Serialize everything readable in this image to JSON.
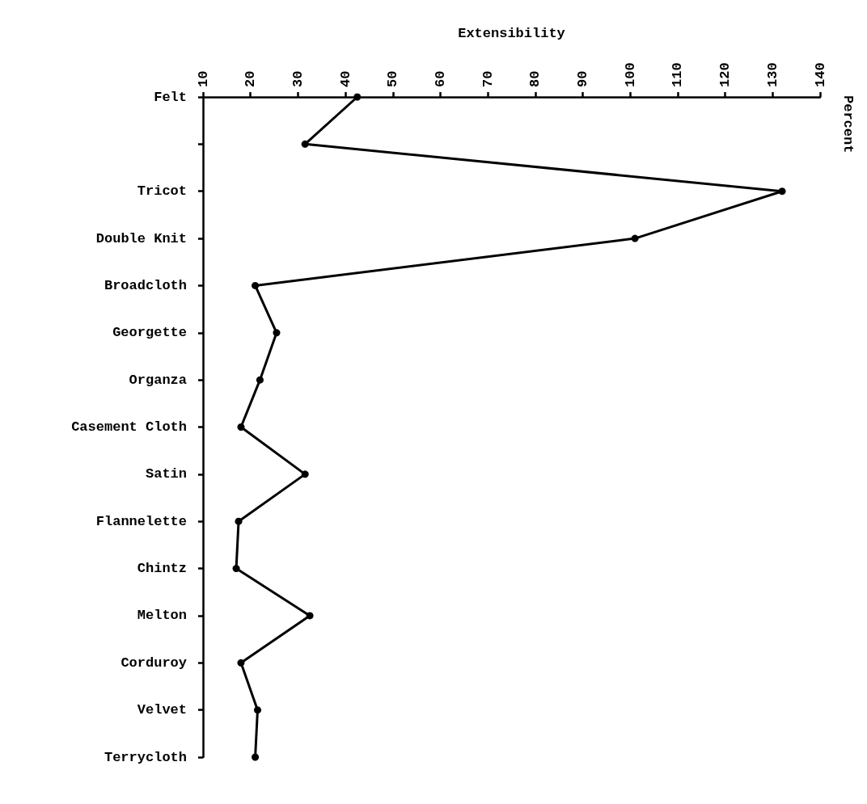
{
  "chart_data": {
    "type": "line",
    "orientation": "horizontal",
    "xlabel": "Extensibility",
    "annotations": [
      "Percent"
    ],
    "categories": [
      "Felt",
      null,
      "Tricot",
      "Double Knit",
      "Broadcloth",
      "Georgette",
      "Organza",
      "Casement Cloth",
      "Satin",
      "Flannelette",
      "Chintz",
      "Melton",
      "Corduroy",
      "Velvet",
      "Terrycloth"
    ],
    "series": [
      {
        "color": "#000000",
        "values": [
          42.5,
          31.5,
          132,
          101,
          21,
          25.5,
          22,
          18,
          31.5,
          17.5,
          17,
          32.5,
          18,
          21.5,
          21
        ]
      }
    ],
    "xlim": [
      10,
      140
    ],
    "xticks": [
      10,
      20,
      30,
      40,
      50,
      60,
      70,
      80,
      90,
      100,
      110,
      120,
      130,
      140
    ],
    "marker": "circle",
    "line_style": "solid",
    "grid": false
  }
}
